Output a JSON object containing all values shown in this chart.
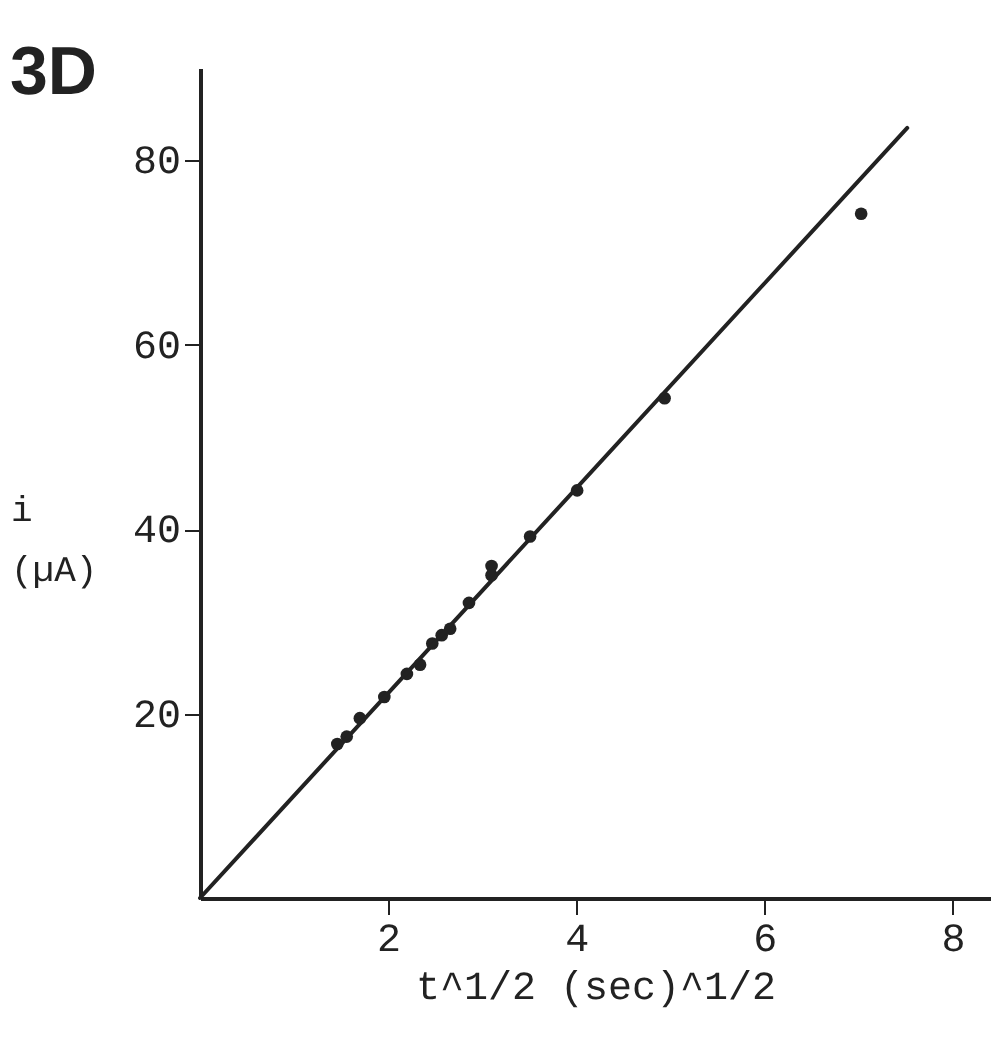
{
  "chart_data": {
    "type": "scatter",
    "title": "3D",
    "xlabel": "t^1/2   (sec)^1/2",
    "ylabel": "i (µA)",
    "xlim": [
      0,
      8.4
    ],
    "ylim": [
      0,
      90
    ],
    "xticks": [
      2,
      4,
      6,
      8
    ],
    "yticks": [
      20,
      40,
      60,
      80
    ],
    "grid": false,
    "marker": "circle",
    "series": [
      {
        "color": "#222222",
        "x": [
          1.46,
          1.56,
          1.7,
          1.96,
          2.2,
          2.34,
          2.47,
          2.57,
          2.66,
          2.86,
          3.1,
          3.1,
          3.51,
          4.01,
          4.94,
          7.03
        ],
        "values": [
          16.7,
          17.5,
          19.5,
          21.8,
          24.3,
          25.3,
          27.6,
          28.5,
          29.2,
          32.0,
          36.0,
          35.0,
          39.2,
          44.2,
          54.2,
          74.2
        ]
      },
      {
        "type": "line",
        "color": "#222222",
        "line_style": "solid",
        "marker": "none",
        "x": [
          0,
          7.52
        ],
        "values": [
          0,
          83.5
        ]
      }
    ]
  }
}
